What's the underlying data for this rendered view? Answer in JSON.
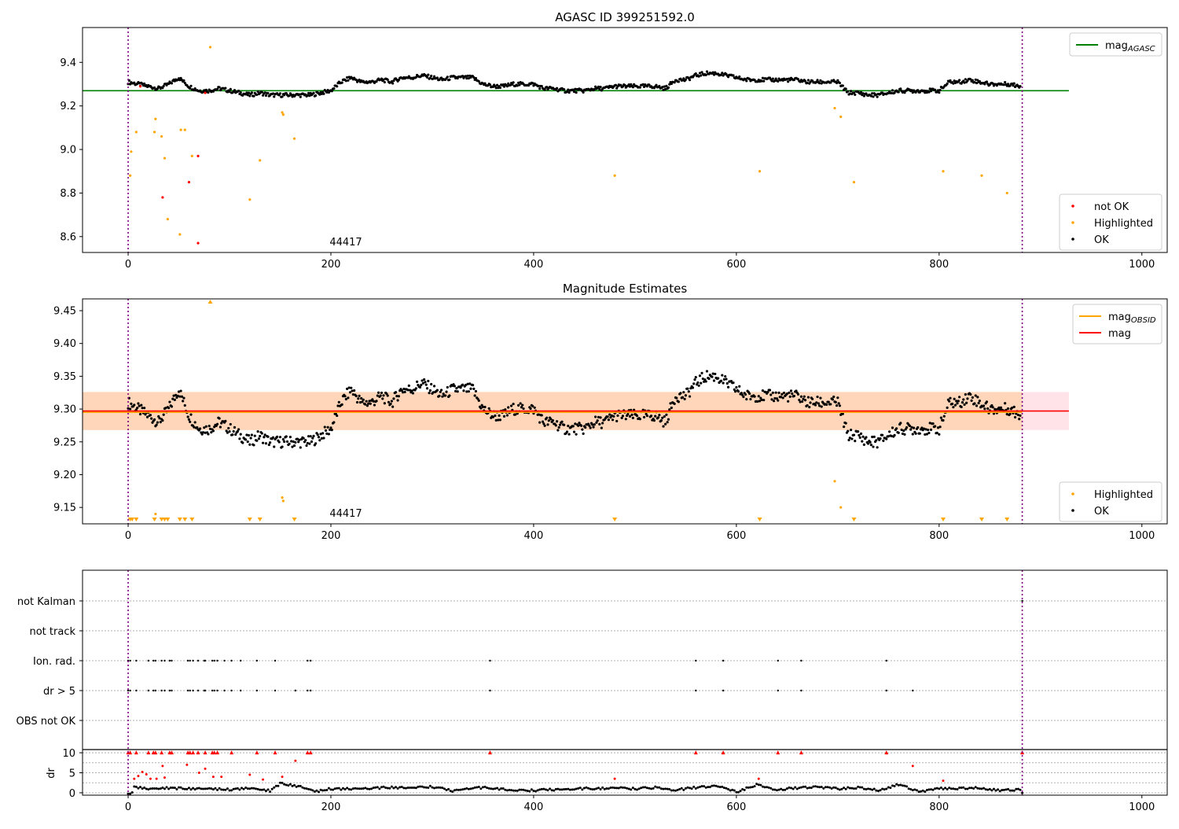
{
  "chart_data": [
    {
      "type": "scatter",
      "title": "AGASC ID 399251592.0",
      "xlim": [
        -45,
        1025
      ],
      "ylim": [
        8.527,
        9.56
      ],
      "xticks": [
        0,
        200,
        400,
        600,
        800,
        1000
      ],
      "yticks": [
        8.6,
        8.8,
        9.0,
        9.2,
        9.4
      ],
      "annotation": "44417",
      "vlines": [
        0,
        882
      ],
      "mag_agasc": 9.27,
      "mag_agasc_xrange": [
        -45,
        928
      ],
      "legend_top": {
        "placement": "top-right",
        "entries": [
          {
            "label": "mag",
            "sub": "AGASC",
            "color": "#008000"
          }
        ]
      },
      "legend_bottom": {
        "placement": "bottom-right",
        "entries": [
          {
            "label": "not OK",
            "color": "#ff0000"
          },
          {
            "label": "Highlighted",
            "color": "#ffa500"
          },
          {
            "label": "OK",
            "color": "#000000"
          }
        ]
      },
      "not_ok": [
        [
          12,
          9.29
        ],
        [
          34,
          8.78
        ],
        [
          60,
          8.85
        ],
        [
          69,
          8.97
        ],
        [
          69,
          8.57
        ],
        [
          76,
          9.26
        ]
      ],
      "highlighted": [
        [
          2,
          8.88
        ],
        [
          3,
          8.99
        ],
        [
          8,
          9.08
        ],
        [
          26,
          9.08
        ],
        [
          27,
          9.14
        ],
        [
          33,
          9.06
        ],
        [
          36,
          8.96
        ],
        [
          39,
          8.68
        ],
        [
          51,
          8.61
        ],
        [
          52,
          9.09
        ],
        [
          56,
          9.09
        ],
        [
          63,
          8.97
        ],
        [
          81,
          9.47
        ],
        [
          120,
          8.77
        ],
        [
          130,
          8.95
        ],
        [
          152,
          9.17
        ],
        [
          153,
          9.16
        ],
        [
          164,
          9.05
        ],
        [
          480,
          8.88
        ],
        [
          623,
          8.9
        ],
        [
          697,
          9.19
        ],
        [
          703,
          9.15
        ],
        [
          716,
          8.85
        ],
        [
          804,
          8.9
        ],
        [
          842,
          8.88
        ],
        [
          867,
          8.8
        ]
      ]
    },
    {
      "type": "scatter",
      "title": "Magnitude Estimates",
      "xlim": [
        -45,
        1025
      ],
      "ylim": [
        9.125,
        9.468
      ],
      "xticks": [
        0,
        200,
        400,
        600,
        800,
        1000
      ],
      "yticks": [
        9.15,
        9.2,
        9.25,
        9.3,
        9.35,
        9.4,
        9.45
      ],
      "annotation": "44417",
      "vlines": [
        0,
        882
      ],
      "mag": 9.297,
      "mag_obsid": 9.295,
      "band": [
        9.268,
        9.326
      ],
      "band_xrange": [
        -45,
        928
      ],
      "legend_top": {
        "placement": "top-right",
        "entries": [
          {
            "label": "mag",
            "sub": "OBSID",
            "color": "#ffa500"
          },
          {
            "label": "mag",
            "sub": "",
            "color": "#ff0000"
          }
        ]
      },
      "legend_bottom": {
        "placement": "bottom-right",
        "entries": [
          {
            "label": "Highlighted",
            "color": "#ffa500"
          },
          {
            "label": "OK",
            "color": "#000000"
          }
        ]
      },
      "highlighted": [
        [
          27,
          9.14
        ],
        [
          152,
          9.165
        ],
        [
          153,
          9.16
        ],
        [
          697,
          9.19
        ],
        [
          703,
          9.15
        ]
      ],
      "above_range": [
        81
      ],
      "below_range": [
        2,
        4,
        8,
        26,
        33,
        36,
        39,
        51,
        56,
        63,
        120,
        130,
        164,
        480,
        623,
        716,
        804,
        842,
        867
      ]
    },
    {
      "type": "scatter",
      "xlim": [
        -45,
        1025
      ],
      "xticks": [
        0,
        200,
        400,
        600,
        800,
        1000
      ],
      "vlines": [
        0,
        882
      ],
      "flag_rows": [
        "not Kalman",
        "not track",
        "Ion. rad.",
        "dr > 5",
        "OBS not OK"
      ],
      "flags": {
        "not Kalman": [
          882
        ],
        "not track": [],
        "Ion. rad.": [
          0,
          2,
          8,
          20,
          25,
          27,
          33,
          36,
          41,
          43,
          59,
          61,
          64,
          69,
          75,
          76,
          83,
          85,
          88,
          95,
          102,
          111,
          127,
          145,
          177,
          180,
          357,
          560,
          587,
          641,
          664,
          748
        ],
        "dr > 5": [
          0,
          2,
          8,
          20,
          25,
          27,
          33,
          36,
          41,
          43,
          59,
          61,
          64,
          69,
          75,
          76,
          83,
          85,
          88,
          95,
          102,
          111,
          127,
          145,
          165,
          177,
          180,
          357,
          560,
          587,
          641,
          664,
          748,
          774
        ],
        "OBS not OK": []
      },
      "dr_ylabel": "dr",
      "dr_ylim": [
        -0.6,
        10.8
      ],
      "dr_yticks": [
        0,
        5,
        10
      ],
      "dr_red": [
        [
          0,
          10
        ],
        [
          2,
          10
        ],
        [
          8,
          10
        ],
        [
          20,
          10
        ],
        [
          25,
          10
        ],
        [
          27,
          10
        ],
        [
          33,
          10
        ],
        [
          41,
          10
        ],
        [
          43,
          10
        ],
        [
          59,
          10
        ],
        [
          61,
          10
        ],
        [
          64,
          10
        ],
        [
          69,
          10
        ],
        [
          76,
          10
        ],
        [
          83,
          10
        ],
        [
          85,
          10
        ],
        [
          88,
          10
        ],
        [
          102,
          10
        ],
        [
          127,
          10
        ],
        [
          145,
          10
        ],
        [
          177,
          10
        ],
        [
          180,
          10
        ],
        [
          357,
          10
        ],
        [
          560,
          10
        ],
        [
          587,
          10
        ],
        [
          641,
          10
        ],
        [
          664,
          10
        ],
        [
          748,
          10
        ],
        [
          882,
          10
        ],
        [
          6,
          3.5
        ],
        [
          10,
          4.2
        ],
        [
          14,
          5.2
        ],
        [
          18,
          4.6
        ],
        [
          22,
          3.5
        ],
        [
          28,
          3.5
        ],
        [
          34,
          6.7
        ],
        [
          36,
          3.8
        ],
        [
          58,
          7
        ],
        [
          70,
          5
        ],
        [
          76,
          6
        ],
        [
          84,
          4
        ],
        [
          92,
          4
        ],
        [
          120,
          4.5
        ],
        [
          133,
          3.3
        ],
        [
          165,
          8
        ],
        [
          152,
          4
        ],
        [
          480,
          3.5
        ],
        [
          622,
          3.5
        ],
        [
          774,
          6.7
        ],
        [
          804,
          3
        ]
      ],
      "dr_ok": [
        [
          5,
          1.5
        ],
        [
          20,
          1
        ],
        [
          40,
          1.2
        ],
        [
          60,
          1
        ],
        [
          80,
          1
        ],
        [
          100,
          0.8
        ],
        [
          120,
          1.2
        ],
        [
          140,
          0.5
        ],
        [
          150,
          2.3
        ],
        [
          170,
          1.5
        ],
        [
          185,
          0.3
        ],
        [
          200,
          1
        ],
        [
          220,
          1
        ],
        [
          240,
          1.2
        ],
        [
          260,
          1.3
        ],
        [
          280,
          1.2
        ],
        [
          300,
          1.5
        ],
        [
          320,
          0.5
        ],
        [
          340,
          1.3
        ],
        [
          360,
          1.2
        ],
        [
          380,
          0.5
        ],
        [
          400,
          0.6
        ],
        [
          420,
          0.8
        ],
        [
          440,
          1
        ],
        [
          460,
          1.1
        ],
        [
          480,
          1.2
        ],
        [
          500,
          1
        ],
        [
          520,
          1.3
        ],
        [
          540,
          0.7
        ],
        [
          560,
          1.3
        ],
        [
          580,
          1.7
        ],
        [
          600,
          0.2
        ],
        [
          620,
          2
        ],
        [
          640,
          0.8
        ],
        [
          660,
          1.2
        ],
        [
          680,
          1.5
        ],
        [
          700,
          1
        ],
        [
          720,
          1.3
        ],
        [
          740,
          0.6
        ],
        [
          760,
          2.1
        ],
        [
          780,
          0.3
        ],
        [
          800,
          1
        ],
        [
          820,
          1.1
        ],
        [
          840,
          1.2
        ],
        [
          860,
          0.6
        ],
        [
          880,
          0.8
        ]
      ]
    }
  ],
  "ok_series": [
    [
      0,
      9.31
    ],
    [
      10,
      9.3
    ],
    [
      20,
      9.29
    ],
    [
      30,
      9.28
    ],
    [
      40,
      9.3
    ],
    [
      50,
      9.33
    ],
    [
      60,
      9.29
    ],
    [
      70,
      9.27
    ],
    [
      80,
      9.27
    ],
    [
      90,
      9.28
    ],
    [
      100,
      9.27
    ],
    [
      110,
      9.26
    ],
    [
      120,
      9.25
    ],
    [
      130,
      9.26
    ],
    [
      140,
      9.25
    ],
    [
      150,
      9.25
    ],
    [
      160,
      9.25
    ],
    [
      170,
      9.25
    ],
    [
      180,
      9.25
    ],
    [
      190,
      9.26
    ],
    [
      200,
      9.27
    ],
    [
      210,
      9.31
    ],
    [
      220,
      9.33
    ],
    [
      230,
      9.31
    ],
    [
      240,
      9.31
    ],
    [
      250,
      9.32
    ],
    [
      260,
      9.31
    ],
    [
      270,
      9.33
    ],
    [
      280,
      9.33
    ],
    [
      290,
      9.34
    ],
    [
      300,
      9.33
    ],
    [
      310,
      9.32
    ],
    [
      320,
      9.33
    ],
    [
      330,
      9.33
    ],
    [
      340,
      9.33
    ],
    [
      350,
      9.3
    ],
    [
      360,
      9.29
    ],
    [
      370,
      9.29
    ],
    [
      380,
      9.3
    ],
    [
      390,
      9.3
    ],
    [
      400,
      9.3
    ],
    [
      410,
      9.28
    ],
    [
      420,
      9.28
    ],
    [
      430,
      9.27
    ],
    [
      440,
      9.27
    ],
    [
      450,
      9.27
    ],
    [
      460,
      9.28
    ],
    [
      470,
      9.28
    ],
    [
      480,
      9.29
    ],
    [
      490,
      9.29
    ],
    [
      500,
      9.29
    ],
    [
      510,
      9.29
    ],
    [
      520,
      9.29
    ],
    [
      530,
      9.28
    ],
    [
      540,
      9.32
    ],
    [
      550,
      9.32
    ],
    [
      560,
      9.34
    ],
    [
      570,
      9.35
    ],
    [
      580,
      9.35
    ],
    [
      590,
      9.34
    ],
    [
      600,
      9.33
    ],
    [
      610,
      9.32
    ],
    [
      620,
      9.32
    ],
    [
      630,
      9.32
    ],
    [
      640,
      9.32
    ],
    [
      650,
      9.32
    ],
    [
      660,
      9.32
    ],
    [
      670,
      9.31
    ],
    [
      680,
      9.31
    ],
    [
      690,
      9.31
    ],
    [
      700,
      9.31
    ],
    [
      710,
      9.26
    ],
    [
      720,
      9.26
    ],
    [
      730,
      9.25
    ],
    [
      740,
      9.25
    ],
    [
      750,
      9.26
    ],
    [
      760,
      9.27
    ],
    [
      770,
      9.27
    ],
    [
      780,
      9.27
    ],
    [
      790,
      9.27
    ],
    [
      800,
      9.27
    ],
    [
      810,
      9.31
    ],
    [
      820,
      9.31
    ],
    [
      830,
      9.32
    ],
    [
      840,
      9.31
    ],
    [
      850,
      9.3
    ],
    [
      860,
      9.3
    ],
    [
      870,
      9.3
    ],
    [
      880,
      9.29
    ]
  ]
}
